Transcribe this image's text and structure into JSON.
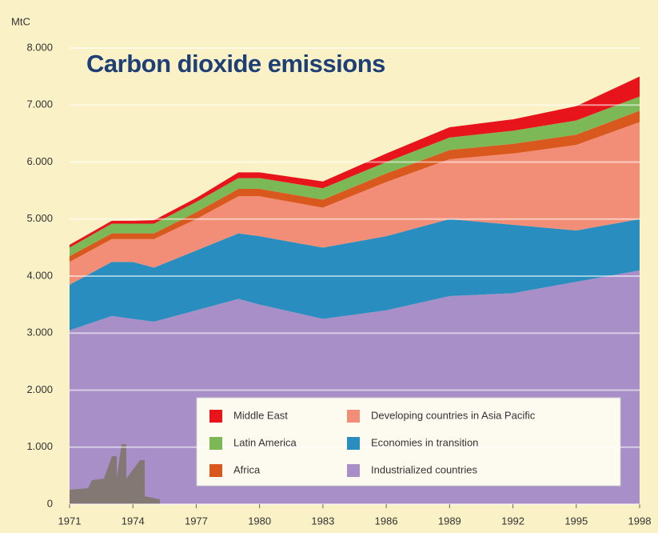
{
  "chart_data": {
    "type": "stacked_area",
    "title": "Carbon dioxide emissions",
    "y_label": "MtC",
    "x": [
      1971,
      1973,
      1974,
      1975,
      1977,
      1979,
      1980,
      1983,
      1986,
      1989,
      1992,
      1995,
      1998
    ],
    "xlim": [
      1971,
      1998
    ],
    "xticks": [
      1971,
      1974,
      1977,
      1980,
      1983,
      1986,
      1989,
      1992,
      1995,
      1998
    ],
    "ylim": [
      0,
      8000
    ],
    "yticks": [
      0,
      {
        "value": 1000,
        "label": "1.000"
      },
      {
        "value": 2000,
        "label": "2.000"
      },
      {
        "value": 3000,
        "label": "3.000"
      },
      {
        "value": 4000,
        "label": "4.000"
      },
      {
        "value": 5000,
        "label": "5.000"
      },
      {
        "value": 6000,
        "label": "6.000"
      },
      {
        "value": 7000,
        "label": "7.000"
      },
      {
        "value": 8000,
        "label": "8.000"
      }
    ],
    "grid": true,
    "legend": "lower right",
    "series": [
      {
        "name": "Industrialized countries",
        "color": "#a98fc7",
        "values": [
          3050,
          3300,
          3250,
          3200,
          3400,
          3600,
          3500,
          3250,
          3400,
          3650,
          3700,
          3900,
          4100
        ]
      },
      {
        "name": "Economies in transition",
        "color": "#2a8dc0",
        "values": [
          800,
          950,
          1000,
          950,
          1050,
          1150,
          1200,
          1250,
          1300,
          1350,
          1200,
          900,
          900
        ]
      },
      {
        "name": "Developing countries in Asia Pacific",
        "color": "#f28e77",
        "values": [
          400,
          400,
          400,
          500,
          550,
          650,
          700,
          700,
          950,
          1050,
          1250,
          1500,
          1700
        ]
      },
      {
        "name": "Africa",
        "color": "#d9581e",
        "values": [
          100,
          100,
          100,
          100,
          120,
          130,
          130,
          140,
          150,
          160,
          170,
          180,
          200
        ]
      },
      {
        "name": "Latin America",
        "color": "#7db857",
        "values": [
          150,
          170,
          170,
          170,
          180,
          190,
          190,
          200,
          200,
          220,
          230,
          250,
          250
        ]
      },
      {
        "name": "Middle East",
        "color": "#e8141c",
        "values": [
          50,
          50,
          50,
          60,
          70,
          100,
          100,
          120,
          150,
          180,
          200,
          250,
          350
        ]
      }
    ]
  }
}
